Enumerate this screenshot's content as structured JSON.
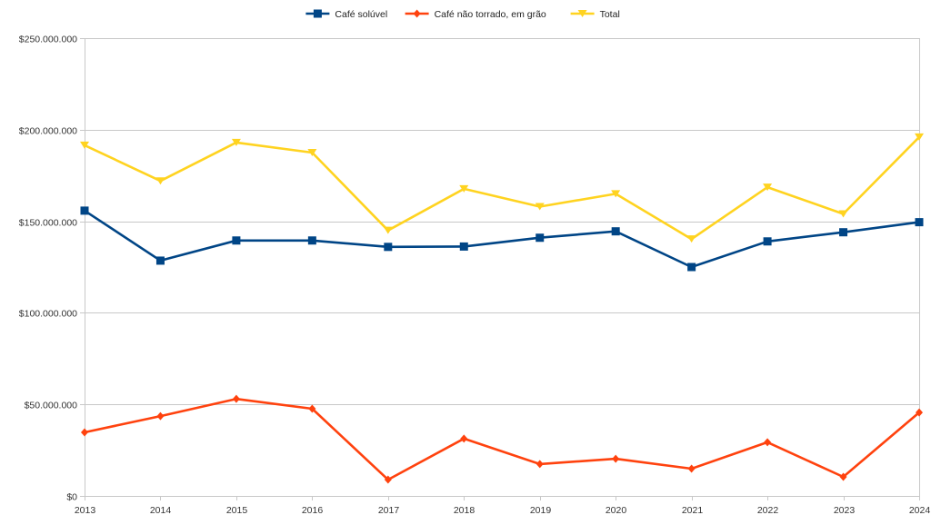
{
  "chart_data": {
    "type": "line",
    "title": "",
    "xlabel": "",
    "ylabel": "",
    "x": [
      "2013",
      "2014",
      "2015",
      "2016",
      "2017",
      "2018",
      "2019",
      "2020",
      "2021",
      "2022",
      "2023",
      "2024"
    ],
    "ylim": [
      0,
      250000000
    ],
    "yticks": [
      0,
      50000000,
      100000000,
      150000000,
      200000000,
      250000000
    ],
    "ytick_labels": [
      "$0",
      "$50.000.000",
      "$100.000.000",
      "$150.000.000",
      "$200.000.000",
      "$250.000.000"
    ],
    "grid": true,
    "legend_position": "top-center",
    "series": [
      {
        "name": "Café solúvel",
        "color": "#004586",
        "marker": "square",
        "values": [
          155800000,
          128500000,
          139500000,
          139500000,
          136000000,
          136200000,
          141000000,
          144500000,
          125000000,
          139000000,
          144000000,
          149500000
        ]
      },
      {
        "name": "Café não torrado, em grão",
        "color": "#ff420e",
        "marker": "diamond",
        "values": [
          34700000,
          43600000,
          53000000,
          47600000,
          8900000,
          31300000,
          17400000,
          20300000,
          14900000,
          29300000,
          10400000,
          45600000
        ]
      },
      {
        "name": "Total",
        "color": "#ffd320",
        "marker": "triangle-down",
        "values": [
          191500000,
          172000000,
          193000000,
          187500000,
          145000000,
          167700000,
          158000000,
          165000000,
          140300000,
          168600000,
          154000000,
          196000000
        ]
      }
    ]
  }
}
